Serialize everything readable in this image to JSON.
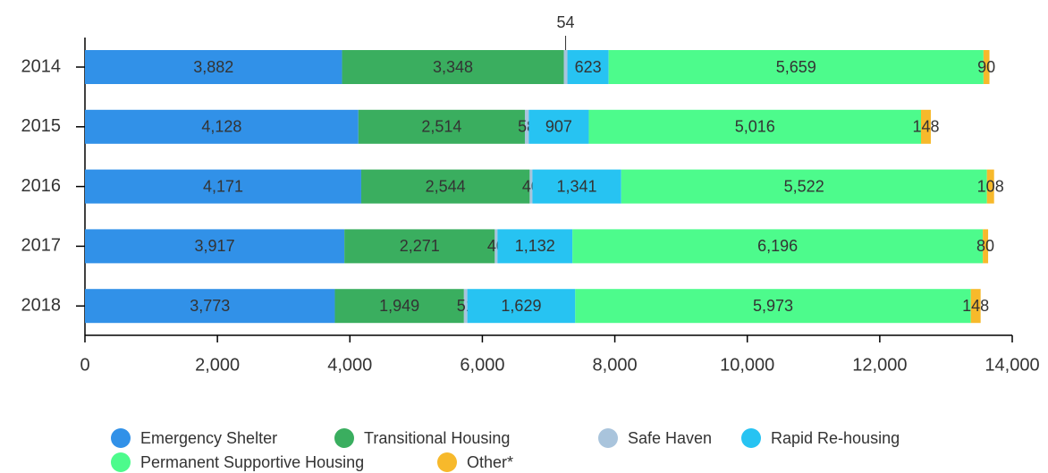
{
  "chart_data": {
    "type": "stacked-bar-horizontal",
    "categories": [
      "2014",
      "2015",
      "2016",
      "2017",
      "2018"
    ],
    "series": [
      {
        "name": "Emergency Shelter",
        "color": "#3191e8",
        "values": [
          3882,
          4128,
          4171,
          3917,
          3773
        ],
        "value_labels": [
          "3,882",
          "4,128",
          "4,171",
          "3,917",
          "3,773"
        ]
      },
      {
        "name": "Transitional Housing",
        "color": "#3aae5f",
        "values": [
          3348,
          2514,
          2544,
          2271,
          1949
        ],
        "value_labels": [
          "3,348",
          "2,514",
          "2,544",
          "2,271",
          "1,949"
        ]
      },
      {
        "name": "Safe Haven",
        "color": "#a9c4dc",
        "values": [
          54,
          58,
          40,
          40,
          51
        ]
      },
      {
        "name": "Rapid Re-housing",
        "color": "#27c3f2",
        "values": [
          623,
          907,
          1341,
          1132,
          1629
        ],
        "value_labels": [
          "623",
          "907",
          "1,341",
          "1,132",
          "1,629"
        ]
      },
      {
        "name": "Permanent Supportive Housing",
        "color": "#4dfb8c",
        "values": [
          5659,
          5016,
          5522,
          6196,
          5973
        ],
        "value_labels": [
          "5,659",
          "5,016",
          "5,522",
          "6,196",
          "5,973"
        ]
      },
      {
        "name": "Other*",
        "color": "#f7b92b",
        "values": [
          90,
          148,
          108,
          80,
          148
        ]
      }
    ],
    "xlim": [
      0,
      14000
    ],
    "xticks": [
      0,
      {
        "value": 2000,
        "label": "2,000"
      },
      {
        "value": 4000,
        "label": "4,000"
      },
      {
        "value": 6000,
        "label": "6,000"
      },
      {
        "value": 8000,
        "label": "8,000"
      },
      {
        "value": 10000,
        "label": "10,000"
      },
      {
        "value": 12000,
        "label": "12,000"
      },
      {
        "value": 14000,
        "label": "14,000"
      }
    ],
    "legend": "bottom"
  }
}
